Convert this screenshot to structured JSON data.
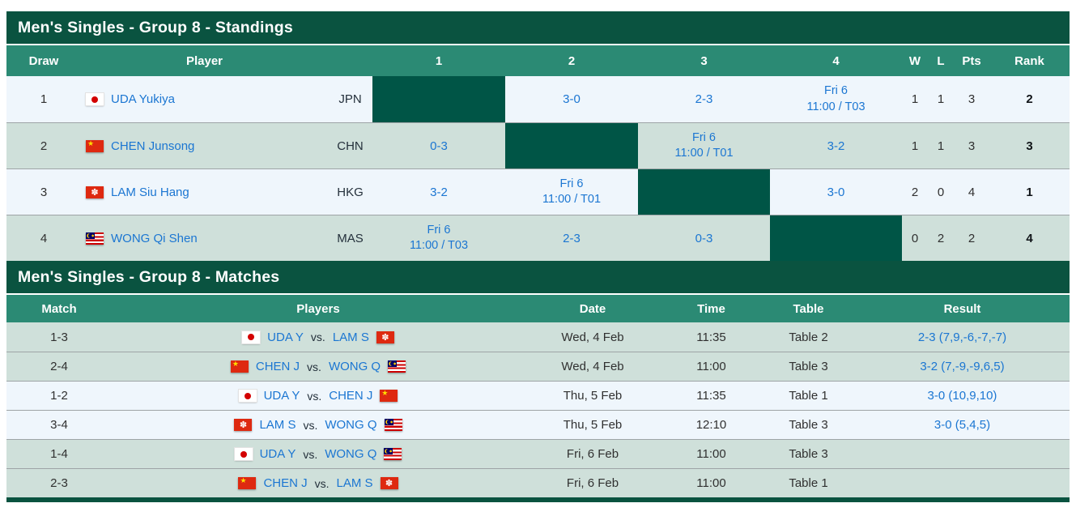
{
  "colors": {
    "title_bar_bg": "#0A5340",
    "column_header_bg": "#2B8A74",
    "row_light_bg": "#EFF6FC",
    "row_green_bg": "#CFE0DA",
    "diagonal_cell_bg": "#005546",
    "link_blue": "#1B76D2"
  },
  "standings": {
    "title": "Men's Singles - Group 8 - Standings",
    "headers": {
      "draw": "Draw",
      "player": "Player",
      "c1": "1",
      "c2": "2",
      "c3": "3",
      "c4": "4",
      "w": "W",
      "l": "L",
      "pts": "Pts",
      "rank": "Rank"
    },
    "rows": [
      {
        "draw": "1",
        "country": "JPN",
        "player": "UDA Yukiya",
        "code": "JPN",
        "c2": "3-0",
        "c3": "2-3",
        "c4": {
          "line1": "Fri 6",
          "line2": "11:00 / T03"
        },
        "w": "1",
        "l": "1",
        "pts": "3",
        "rank": "2"
      },
      {
        "draw": "2",
        "country": "CHN",
        "player": "CHEN Junsong",
        "code": "CHN",
        "c1": "0-3",
        "c3": {
          "line1": "Fri 6",
          "line2": "11:00 / T01"
        },
        "c4": "3-2",
        "w": "1",
        "l": "1",
        "pts": "3",
        "rank": "3"
      },
      {
        "draw": "3",
        "country": "HKG",
        "player": "LAM Siu Hang",
        "code": "HKG",
        "c1": "3-2",
        "c2": {
          "line1": "Fri 6",
          "line2": "11:00 / T01"
        },
        "c4": "3-0",
        "w": "2",
        "l": "0",
        "pts": "4",
        "rank": "1"
      },
      {
        "draw": "4",
        "country": "MAS",
        "player": "WONG Qi Shen",
        "code": "MAS",
        "c1": {
          "line1": "Fri 6",
          "line2": "11:00 / T03"
        },
        "c2": "2-3",
        "c3": "0-3",
        "w": "0",
        "l": "2",
        "pts": "2",
        "rank": "4"
      }
    ]
  },
  "matches": {
    "title": "Men's Singles - Group 8 - Matches",
    "vs_label": "vs.",
    "headers": {
      "match": "Match",
      "players": "Players",
      "date": "Date",
      "time": "Time",
      "table": "Table",
      "result": "Result"
    },
    "rows": [
      {
        "match": "1-3",
        "p1": "UDA Y",
        "p1_country": "JPN",
        "p2": "LAM S",
        "p2_country": "HKG",
        "date": "Wed, 4 Feb",
        "time": "11:35",
        "table": "Table 2",
        "result": "2-3 (7,9,-6,-7,-7)"
      },
      {
        "match": "2-4",
        "p1": "CHEN J",
        "p1_country": "CHN",
        "p2": "WONG Q",
        "p2_country": "MAS",
        "date": "Wed, 4 Feb",
        "time": "11:00",
        "table": "Table 3",
        "result": "3-2 (7,-9,-9,6,5)"
      },
      {
        "match": "1-2",
        "p1": "UDA Y",
        "p1_country": "JPN",
        "p2": "CHEN J",
        "p2_country": "CHN",
        "date": "Thu, 5 Feb",
        "time": "11:35",
        "table": "Table 1",
        "result": "3-0 (10,9,10)"
      },
      {
        "match": "3-4",
        "p1": "LAM S",
        "p1_country": "HKG",
        "p2": "WONG Q",
        "p2_country": "MAS",
        "date": "Thu, 5 Feb",
        "time": "12:10",
        "table": "Table 3",
        "result": "3-0 (5,4,5)"
      },
      {
        "match": "1-4",
        "p1": "UDA Y",
        "p1_country": "JPN",
        "p2": "WONG Q",
        "p2_country": "MAS",
        "date": "Fri, 6 Feb",
        "time": "11:00",
        "table": "Table 3",
        "result": ""
      },
      {
        "match": "2-3",
        "p1": "CHEN J",
        "p1_country": "CHN",
        "p2": "LAM S",
        "p2_country": "HKG",
        "date": "Fri, 6 Feb",
        "time": "11:00",
        "table": "Table 1",
        "result": ""
      }
    ]
  }
}
